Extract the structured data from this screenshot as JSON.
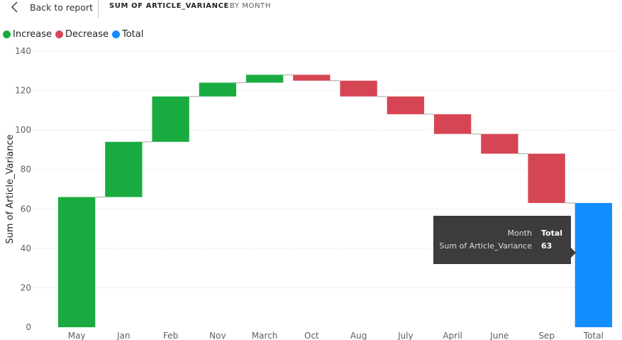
{
  "header": {
    "back_label": "Back to report",
    "title": "SUM OF ARTICLE_VARIANCE",
    "subtitle": "BY MONTH"
  },
  "colors": {
    "increase": "#1aab40",
    "decrease": "#d64554",
    "total": "#118dff",
    "connector": "#a6a6a6",
    "grid": "#c8c8c8"
  },
  "legend": [
    {
      "label": "Increase",
      "color": "#1aab40"
    },
    {
      "label": "Decrease",
      "color": "#d64554"
    },
    {
      "label": "Total",
      "color": "#118dff"
    }
  ],
  "tooltip": {
    "rows": [
      {
        "key": "Month",
        "value": "Total"
      },
      {
        "key": "Sum of Article_Variance",
        "value": "63"
      }
    ]
  },
  "chart_data": {
    "type": "waterfall",
    "ylabel": "Sum of Article_Variance",
    "xlabel": "",
    "ylim": [
      0,
      140
    ],
    "yticks": [
      0,
      20,
      40,
      60,
      80,
      100,
      120,
      140
    ],
    "grid": true,
    "legend_position": "top-left",
    "categories": [
      "May",
      "Jan",
      "Feb",
      "Nov",
      "March",
      "Oct",
      "Aug",
      "July",
      "April",
      "June",
      "Sep",
      "Total"
    ],
    "deltas": [
      66,
      28,
      23,
      7,
      4,
      -3,
      -8,
      -9,
      -10,
      -10,
      -25,
      null
    ],
    "kinds": [
      "increase",
      "increase",
      "increase",
      "increase",
      "increase",
      "decrease",
      "decrease",
      "decrease",
      "decrease",
      "decrease",
      "decrease",
      "total"
    ],
    "total": 63
  }
}
